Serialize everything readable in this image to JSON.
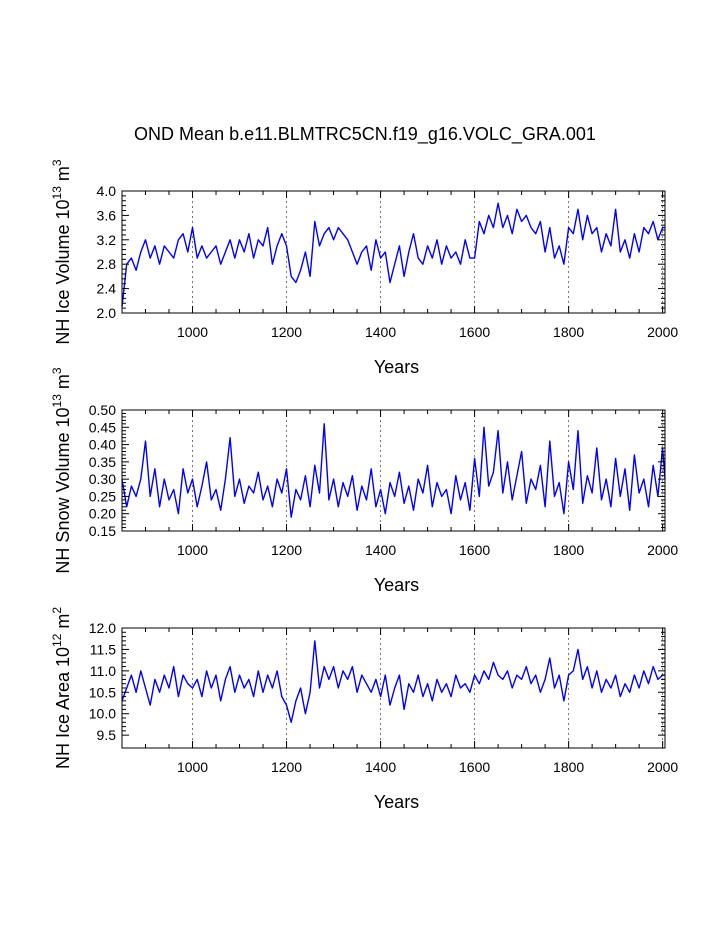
{
  "page": {
    "title": "OND Mean b.e11.BLMTRC5CN.f19_g16.VOLC_GRA.001"
  },
  "chart_data": [
    {
      "type": "line",
      "xlabel": "Years",
      "ylabel_main": "NH Ice Volume 10",
      "ylabel_sup": "13",
      "ylabel_unit": "m",
      "ylabel_unit_sup": "3",
      "xlim": [
        850,
        2005
      ],
      "ylim": [
        2.0,
        4.0
      ],
      "xticks": [
        1000,
        1200,
        1400,
        1600,
        1800,
        2000
      ],
      "yticks": [
        "2.0",
        "2.4",
        "2.8",
        "3.2",
        "3.6",
        "4.0"
      ],
      "ytick_values": [
        2.0,
        2.4,
        2.8,
        3.2,
        3.6,
        4.0
      ],
      "vlines": [
        1000,
        1200,
        1400,
        1600,
        1800,
        2000
      ],
      "line_color": "#0000ff",
      "series": [
        {
          "x": [
            850,
            860,
            870,
            880,
            890,
            900,
            910,
            920,
            930,
            940,
            950,
            960,
            970,
            980,
            990,
            1000,
            1010,
            1020,
            1030,
            1040,
            1050,
            1060,
            1070,
            1080,
            1090,
            1100,
            1110,
            1120,
            1130,
            1140,
            1150,
            1160,
            1170,
            1180,
            1190,
            1200,
            1210,
            1220,
            1230,
            1240,
            1250,
            1260,
            1270,
            1280,
            1290,
            1300,
            1310,
            1320,
            1330,
            1340,
            1350,
            1360,
            1370,
            1380,
            1390,
            1400,
            1410,
            1420,
            1430,
            1440,
            1450,
            1460,
            1470,
            1480,
            1490,
            1500,
            1510,
            1520,
            1530,
            1540,
            1550,
            1560,
            1570,
            1580,
            1590,
            1600,
            1610,
            1620,
            1630,
            1640,
            1650,
            1660,
            1670,
            1680,
            1690,
            1700,
            1710,
            1720,
            1730,
            1740,
            1750,
            1760,
            1770,
            1780,
            1790,
            1800,
            1810,
            1820,
            1830,
            1840,
            1850,
            1860,
            1870,
            1880,
            1890,
            1900,
            1910,
            1920,
            1930,
            1940,
            1950,
            1960,
            1970,
            1980,
            1990,
            2000,
            2005
          ],
          "values": [
            2.1,
            2.8,
            2.9,
            2.7,
            3.0,
            3.2,
            2.9,
            3.1,
            2.8,
            3.1,
            3.0,
            2.9,
            3.2,
            3.3,
            3.0,
            3.4,
            2.9,
            3.1,
            2.9,
            3.0,
            3.1,
            2.8,
            3.0,
            3.2,
            2.9,
            3.2,
            3.0,
            3.3,
            2.9,
            3.2,
            3.1,
            3.4,
            2.8,
            3.1,
            3.3,
            3.1,
            2.6,
            2.5,
            2.7,
            3.0,
            2.6,
            3.5,
            3.1,
            3.3,
            3.4,
            3.2,
            3.4,
            3.3,
            3.2,
            3.0,
            2.8,
            3.0,
            3.1,
            2.7,
            3.2,
            2.9,
            3.0,
            2.5,
            2.8,
            3.1,
            2.6,
            3.0,
            3.3,
            2.9,
            2.8,
            3.1,
            2.9,
            3.2,
            2.8,
            3.1,
            2.9,
            3.0,
            2.8,
            3.2,
            2.9,
            2.9,
            3.5,
            3.3,
            3.6,
            3.4,
            3.8,
            3.4,
            3.6,
            3.3,
            3.7,
            3.5,
            3.6,
            3.4,
            3.3,
            3.5,
            3.0,
            3.4,
            2.9,
            3.1,
            2.8,
            3.4,
            3.3,
            3.7,
            3.2,
            3.6,
            3.3,
            3.4,
            3.0,
            3.3,
            3.1,
            3.7,
            3.0,
            3.2,
            2.9,
            3.3,
            3.0,
            3.4,
            3.3,
            3.5,
            3.2,
            3.4,
            3.4
          ]
        }
      ]
    },
    {
      "type": "line",
      "xlabel": "Years",
      "ylabel_main": "NH Snow Volume 10",
      "ylabel_sup": "13",
      "ylabel_unit": "m",
      "ylabel_unit_sup": "3",
      "xlim": [
        850,
        2005
      ],
      "ylim": [
        0.15,
        0.5
      ],
      "xticks": [
        1000,
        1200,
        1400,
        1600,
        1800,
        2000
      ],
      "yticks": [
        "0.15",
        "0.20",
        "0.25",
        "0.30",
        "0.35",
        "0.40",
        "0.45",
        "0.50"
      ],
      "ytick_values": [
        0.15,
        0.2,
        0.25,
        0.3,
        0.35,
        0.4,
        0.45,
        0.5
      ],
      "vlines": [
        1000,
        1200,
        1400,
        1600,
        1800,
        2000
      ],
      "line_color": "#0000ff",
      "series": [
        {
          "x": [
            850,
            860,
            870,
            880,
            890,
            900,
            910,
            920,
            930,
            940,
            950,
            960,
            970,
            980,
            990,
            1000,
            1010,
            1020,
            1030,
            1040,
            1050,
            1060,
            1070,
            1080,
            1090,
            1100,
            1110,
            1120,
            1130,
            1140,
            1150,
            1160,
            1170,
            1180,
            1190,
            1200,
            1210,
            1220,
            1230,
            1240,
            1250,
            1260,
            1270,
            1280,
            1290,
            1300,
            1310,
            1320,
            1330,
            1340,
            1350,
            1360,
            1370,
            1380,
            1390,
            1400,
            1410,
            1420,
            1430,
            1440,
            1450,
            1460,
            1470,
            1480,
            1490,
            1500,
            1510,
            1520,
            1530,
            1540,
            1550,
            1560,
            1570,
            1580,
            1590,
            1600,
            1610,
            1620,
            1630,
            1640,
            1650,
            1660,
            1670,
            1680,
            1690,
            1700,
            1710,
            1720,
            1730,
            1740,
            1750,
            1760,
            1770,
            1780,
            1790,
            1800,
            1810,
            1820,
            1830,
            1840,
            1850,
            1860,
            1870,
            1880,
            1890,
            1900,
            1910,
            1920,
            1930,
            1940,
            1950,
            1960,
            1970,
            1980,
            1990,
            2000,
            2005
          ],
          "values": [
            0.3,
            0.22,
            0.28,
            0.25,
            0.3,
            0.41,
            0.25,
            0.33,
            0.22,
            0.3,
            0.24,
            0.27,
            0.2,
            0.33,
            0.26,
            0.3,
            0.22,
            0.28,
            0.35,
            0.24,
            0.27,
            0.21,
            0.3,
            0.42,
            0.25,
            0.3,
            0.23,
            0.28,
            0.26,
            0.32,
            0.24,
            0.28,
            0.22,
            0.3,
            0.26,
            0.33,
            0.19,
            0.27,
            0.24,
            0.31,
            0.22,
            0.34,
            0.26,
            0.46,
            0.24,
            0.3,
            0.22,
            0.29,
            0.25,
            0.31,
            0.21,
            0.28,
            0.24,
            0.33,
            0.22,
            0.27,
            0.2,
            0.29,
            0.25,
            0.32,
            0.23,
            0.28,
            0.21,
            0.3,
            0.26,
            0.34,
            0.22,
            0.29,
            0.25,
            0.27,
            0.2,
            0.31,
            0.24,
            0.29,
            0.21,
            0.36,
            0.25,
            0.45,
            0.28,
            0.32,
            0.44,
            0.26,
            0.35,
            0.24,
            0.31,
            0.38,
            0.23,
            0.3,
            0.27,
            0.34,
            0.22,
            0.41,
            0.25,
            0.29,
            0.2,
            0.35,
            0.27,
            0.44,
            0.23,
            0.31,
            0.26,
            0.39,
            0.24,
            0.3,
            0.22,
            0.36,
            0.25,
            0.33,
            0.21,
            0.37,
            0.26,
            0.3,
            0.22,
            0.34,
            0.25,
            0.39,
            0.3
          ]
        }
      ]
    },
    {
      "type": "line",
      "xlabel": "Years",
      "ylabel_main": "NH Ice Area 10",
      "ylabel_sup": "12",
      "ylabel_unit": "m",
      "ylabel_unit_sup": "2",
      "xlim": [
        850,
        2005
      ],
      "ylim": [
        9.2,
        12.0
      ],
      "xticks": [
        1000,
        1200,
        1400,
        1600,
        1800,
        2000
      ],
      "yticks": [
        "9.5",
        "10.0",
        "10.5",
        "11.0",
        "11.5",
        "12.0"
      ],
      "ytick_values": [
        9.5,
        10.0,
        10.5,
        11.0,
        11.5,
        12.0
      ],
      "vlines": [
        1000,
        1200,
        1400,
        1600,
        1800,
        2000
      ],
      "line_color": "#0000ff",
      "series": [
        {
          "x": [
            850,
            860,
            870,
            880,
            890,
            900,
            910,
            920,
            930,
            940,
            950,
            960,
            970,
            980,
            990,
            1000,
            1010,
            1020,
            1030,
            1040,
            1050,
            1060,
            1070,
            1080,
            1090,
            1100,
            1110,
            1120,
            1130,
            1140,
            1150,
            1160,
            1170,
            1180,
            1190,
            1200,
            1210,
            1220,
            1230,
            1240,
            1250,
            1260,
            1270,
            1280,
            1290,
            1300,
            1310,
            1320,
            1330,
            1340,
            1350,
            1360,
            1370,
            1380,
            1390,
            1400,
            1410,
            1420,
            1430,
            1440,
            1450,
            1460,
            1470,
            1480,
            1490,
            1500,
            1510,
            1520,
            1530,
            1540,
            1550,
            1560,
            1570,
            1580,
            1590,
            1600,
            1610,
            1620,
            1630,
            1640,
            1650,
            1660,
            1670,
            1680,
            1690,
            1700,
            1710,
            1720,
            1730,
            1740,
            1750,
            1760,
            1770,
            1780,
            1790,
            1800,
            1810,
            1820,
            1830,
            1840,
            1850,
            1860,
            1870,
            1880,
            1890,
            1900,
            1910,
            1920,
            1930,
            1940,
            1950,
            1960,
            1970,
            1980,
            1990,
            2000,
            2005
          ],
          "values": [
            10.3,
            10.6,
            10.9,
            10.5,
            11.0,
            10.6,
            10.2,
            10.8,
            10.5,
            10.9,
            10.6,
            11.1,
            10.4,
            10.9,
            10.7,
            10.6,
            10.8,
            10.4,
            11.0,
            10.6,
            10.9,
            10.3,
            10.8,
            11.1,
            10.5,
            10.9,
            10.6,
            10.8,
            10.4,
            11.0,
            10.5,
            10.9,
            10.6,
            11.0,
            10.4,
            10.2,
            9.8,
            10.3,
            10.6,
            10.0,
            10.5,
            11.7,
            10.6,
            11.1,
            10.8,
            11.1,
            10.6,
            11.0,
            10.8,
            11.1,
            10.5,
            10.9,
            10.7,
            10.5,
            10.8,
            10.4,
            10.9,
            10.2,
            10.6,
            10.9,
            10.1,
            10.7,
            10.5,
            10.9,
            10.4,
            10.7,
            10.3,
            10.8,
            10.5,
            10.7,
            10.4,
            10.9,
            10.6,
            10.7,
            10.5,
            10.9,
            10.7,
            11.0,
            10.8,
            11.2,
            10.9,
            10.8,
            11.0,
            10.6,
            10.9,
            10.8,
            11.1,
            10.7,
            10.9,
            10.5,
            10.8,
            11.3,
            10.6,
            10.9,
            10.3,
            10.9,
            11.0,
            11.5,
            10.8,
            11.1,
            10.6,
            11.0,
            10.5,
            10.8,
            10.6,
            10.9,
            10.4,
            10.7,
            10.5,
            10.9,
            10.6,
            11.0,
            10.7,
            11.1,
            10.8,
            10.9,
            10.9
          ]
        }
      ]
    }
  ]
}
